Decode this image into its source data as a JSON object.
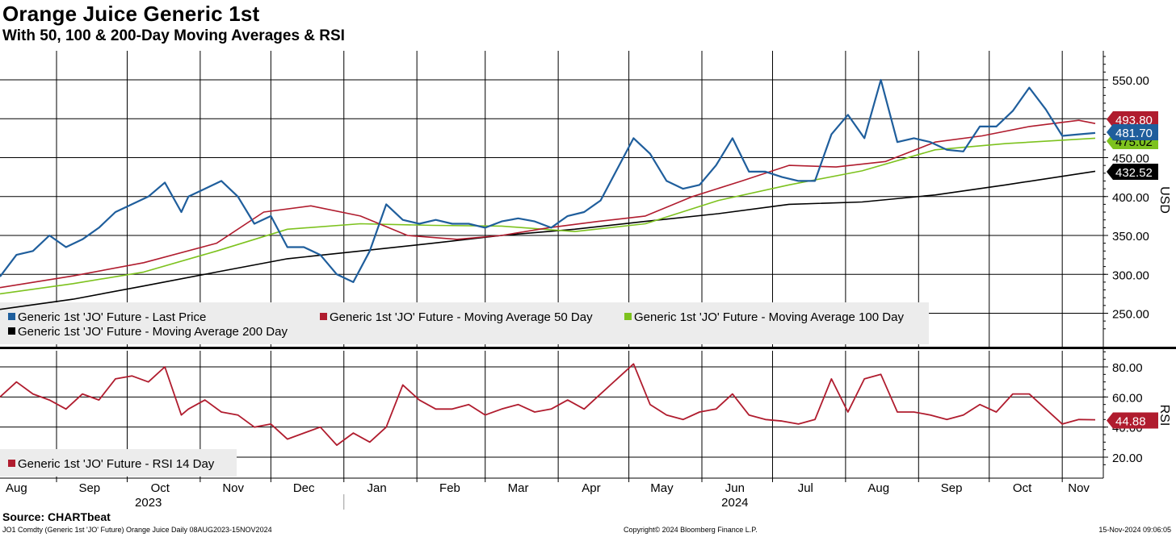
{
  "title": "Orange Juice Generic 1st",
  "subtitle": "With 50, 100 & 200-Day Moving Averages & RSI",
  "source": "Source: CHARTbeat",
  "footer": {
    "left": "JO1 Comdty (Generic 1st 'JO' Future) Orange Juice  Daily 08AUG2023-15NOV2024",
    "center": "Copyright© 2024 Bloomberg Finance L.P.",
    "right": "15-Nov-2024 09:06:05"
  },
  "colors": {
    "last_price": "#1f5e9c",
    "ma50": "#b01c2e",
    "ma100": "#7dc21e",
    "ma200": "#000000",
    "rsi": "#b01c2e",
    "legend_bg": "#ececec"
  },
  "chart_data": [
    {
      "type": "line",
      "panel": "price",
      "ylabel": "USD",
      "ylim": [
        210,
        585
      ],
      "y_ticks": [
        550,
        500,
        450,
        400,
        350,
        300,
        250
      ],
      "y_tick_labels": [
        "550.00",
        "500.00",
        "450.00",
        "400.00",
        "350.00",
        "300.00",
        "250.00"
      ],
      "x_range": [
        "2023-08-08",
        "2024-11-15"
      ],
      "legend": [
        "Generic 1st 'JO' Future - Last Price",
        "Generic 1st 'JO' Future - Moving Average 50 Day",
        "Generic 1st 'JO' Future - Moving Average 100 Day",
        "Generic 1st 'JO' Future - Moving Average 200 Day"
      ],
      "last_values": [
        {
          "series": "ma50",
          "label": "493.80",
          "value": 493.8
        },
        {
          "series": "last",
          "label": "481.70",
          "value": 481.7
        },
        {
          "series": "ma100",
          "label": "475.02",
          "value": 475.02
        },
        {
          "series": "ma200",
          "label": "432.52",
          "value": 432.52
        }
      ],
      "series": [
        {
          "key": "last",
          "x": [
            "2023-08-08",
            "2023-08-15",
            "2023-08-22",
            "2023-08-29",
            "2023-09-05",
            "2023-09-12",
            "2023-09-19",
            "2023-09-26",
            "2023-10-03",
            "2023-10-10",
            "2023-10-17",
            "2023-10-24",
            "2023-10-27",
            "2023-11-03",
            "2023-11-10",
            "2023-11-17",
            "2023-11-24",
            "2023-12-01",
            "2023-12-08",
            "2023-12-15",
            "2023-12-22",
            "2023-12-29",
            "2024-01-05",
            "2024-01-12",
            "2024-01-19",
            "2024-01-26",
            "2024-02-02",
            "2024-02-09",
            "2024-02-16",
            "2024-02-23",
            "2024-03-01",
            "2024-03-08",
            "2024-03-15",
            "2024-03-22",
            "2024-03-29",
            "2024-04-05",
            "2024-04-12",
            "2024-04-19",
            "2024-04-26",
            "2024-05-03",
            "2024-05-10",
            "2024-05-17",
            "2024-05-24",
            "2024-05-31",
            "2024-06-07",
            "2024-06-14",
            "2024-06-21",
            "2024-06-28",
            "2024-07-05",
            "2024-07-12",
            "2024-07-19",
            "2024-07-26",
            "2024-08-02",
            "2024-08-09",
            "2024-08-16",
            "2024-08-23",
            "2024-08-30",
            "2024-09-06",
            "2024-09-13",
            "2024-09-20",
            "2024-09-27",
            "2024-10-04",
            "2024-10-11",
            "2024-10-18",
            "2024-10-25",
            "2024-11-01",
            "2024-11-08",
            "2024-11-15"
          ],
          "values": [
            297,
            325,
            330,
            350,
            335,
            345,
            360,
            380,
            390,
            400,
            418,
            380,
            400,
            410,
            420,
            400,
            365,
            375,
            335,
            335,
            325,
            300,
            290,
            330,
            390,
            370,
            365,
            370,
            365,
            365,
            360,
            368,
            372,
            368,
            360,
            375,
            380,
            395,
            435,
            475,
            455,
            420,
            410,
            415,
            440,
            475,
            432,
            432,
            425,
            420,
            420,
            480,
            505,
            475,
            550,
            470,
            475,
            470,
            460,
            458,
            490,
            490,
            510,
            540,
            512,
            478,
            480,
            481.7
          ]
        },
        {
          "key": "ma50",
          "x": [
            "2023-08-08",
            "2023-09-08",
            "2023-10-08",
            "2023-11-08",
            "2023-11-28",
            "2023-12-18",
            "2024-01-08",
            "2024-01-28",
            "2024-02-18",
            "2024-03-08",
            "2024-03-28",
            "2024-04-18",
            "2024-05-08",
            "2024-05-28",
            "2024-06-18",
            "2024-07-08",
            "2024-07-28",
            "2024-08-18",
            "2024-09-08",
            "2024-09-28",
            "2024-10-18",
            "2024-11-08",
            "2024-11-15"
          ],
          "values": [
            283,
            298,
            315,
            340,
            380,
            388,
            375,
            350,
            345,
            350,
            360,
            368,
            375,
            400,
            420,
            440,
            438,
            445,
            470,
            478,
            490,
            498,
            493.8
          ]
        },
        {
          "key": "ma100",
          "x": [
            "2023-08-08",
            "2023-09-08",
            "2023-10-08",
            "2023-11-08",
            "2023-12-08",
            "2024-01-08",
            "2024-02-08",
            "2024-03-08",
            "2024-04-08",
            "2024-05-08",
            "2024-06-08",
            "2024-07-08",
            "2024-08-08",
            "2024-09-08",
            "2024-10-08",
            "2024-11-15"
          ],
          "values": [
            275,
            288,
            303,
            330,
            358,
            365,
            363,
            362,
            355,
            365,
            395,
            415,
            433,
            460,
            468,
            475.02
          ]
        },
        {
          "key": "ma200",
          "x": [
            "2023-08-08",
            "2023-09-08",
            "2023-10-08",
            "2023-11-08",
            "2023-12-08",
            "2024-01-08",
            "2024-02-08",
            "2024-03-08",
            "2024-04-08",
            "2024-05-08",
            "2024-06-08",
            "2024-07-08",
            "2024-08-08",
            "2024-09-08",
            "2024-10-08",
            "2024-11-15"
          ],
          "values": [
            255,
            268,
            285,
            303,
            320,
            330,
            340,
            350,
            358,
            368,
            378,
            390,
            393,
            402,
            415,
            432.52
          ]
        }
      ]
    },
    {
      "type": "line",
      "panel": "rsi",
      "ylabel": "RSI",
      "ylim": [
        12,
        90
      ],
      "y_ticks": [
        80,
        60,
        40,
        20
      ],
      "y_tick_labels": [
        "80.00",
        "60.00",
        "40.00",
        "20.00"
      ],
      "legend": [
        "Generic 1st 'JO' Future - RSI 14 Day"
      ],
      "last_values": [
        {
          "series": "rsi",
          "label": "44.88",
          "value": 44.88
        }
      ],
      "series": [
        {
          "key": "rsi",
          "x": [
            "2023-08-08",
            "2023-08-15",
            "2023-08-22",
            "2023-08-29",
            "2023-09-05",
            "2023-09-12",
            "2023-09-19",
            "2023-09-26",
            "2023-10-03",
            "2023-10-10",
            "2023-10-17",
            "2023-10-24",
            "2023-10-27",
            "2023-11-03",
            "2023-11-10",
            "2023-11-17",
            "2023-11-24",
            "2023-12-01",
            "2023-12-08",
            "2023-12-15",
            "2023-12-22",
            "2023-12-29",
            "2024-01-05",
            "2024-01-12",
            "2024-01-19",
            "2024-01-26",
            "2024-02-02",
            "2024-02-09",
            "2024-02-16",
            "2024-02-23",
            "2024-03-01",
            "2024-03-08",
            "2024-03-15",
            "2024-03-22",
            "2024-03-29",
            "2024-04-05",
            "2024-04-12",
            "2024-04-19",
            "2024-04-26",
            "2024-05-03",
            "2024-05-10",
            "2024-05-17",
            "2024-05-24",
            "2024-05-31",
            "2024-06-07",
            "2024-06-14",
            "2024-06-21",
            "2024-06-28",
            "2024-07-05",
            "2024-07-12",
            "2024-07-19",
            "2024-07-26",
            "2024-08-02",
            "2024-08-09",
            "2024-08-16",
            "2024-08-23",
            "2024-08-30",
            "2024-09-06",
            "2024-09-13",
            "2024-09-20",
            "2024-09-27",
            "2024-10-04",
            "2024-10-11",
            "2024-10-18",
            "2024-10-25",
            "2024-11-01",
            "2024-11-08",
            "2024-11-15"
          ],
          "values": [
            60,
            70,
            62,
            58,
            52,
            62,
            58,
            72,
            74,
            70,
            80,
            48,
            52,
            58,
            50,
            48,
            40,
            42,
            32,
            36,
            40,
            28,
            36,
            30,
            40,
            68,
            58,
            52,
            52,
            55,
            48,
            52,
            55,
            50,
            52,
            58,
            52,
            62,
            72,
            82,
            55,
            48,
            45,
            50,
            52,
            62,
            48,
            45,
            44,
            42,
            45,
            72,
            50,
            72,
            75,
            50,
            50,
            48,
            45,
            48,
            55,
            50,
            62,
            62,
            52,
            42,
            45,
            44.88
          ]
        }
      ]
    }
  ],
  "x_axis": {
    "months": [
      {
        "label": "Aug",
        "date": "2023-08-15"
      },
      {
        "label": "Sep",
        "date": "2023-09-15"
      },
      {
        "label": "Oct",
        "date": "2023-10-15"
      },
      {
        "label": "Nov",
        "date": "2023-11-15"
      },
      {
        "label": "Dec",
        "date": "2023-12-15"
      },
      {
        "label": "Jan",
        "date": "2024-01-15"
      },
      {
        "label": "Feb",
        "date": "2024-02-15"
      },
      {
        "label": "Mar",
        "date": "2024-03-15"
      },
      {
        "label": "Apr",
        "date": "2024-04-15"
      },
      {
        "label": "May",
        "date": "2024-05-15"
      },
      {
        "label": "Jun",
        "date": "2024-06-15"
      },
      {
        "label": "Jul",
        "date": "2024-07-15"
      },
      {
        "label": "Aug",
        "date": "2024-08-15"
      },
      {
        "label": "Sep",
        "date": "2024-09-15"
      },
      {
        "label": "Oct",
        "date": "2024-10-15"
      },
      {
        "label": "Nov",
        "date": "2024-11-08"
      }
    ],
    "gridlines": [
      "2023-09-01",
      "2023-10-01",
      "2023-11-01",
      "2023-12-01",
      "2024-01-01",
      "2024-02-01",
      "2024-03-01",
      "2024-04-01",
      "2024-05-01",
      "2024-06-01",
      "2024-07-01",
      "2024-08-01",
      "2024-09-01",
      "2024-10-01",
      "2024-11-01"
    ],
    "years": [
      {
        "label": "2023",
        "date": "2023-10-10"
      },
      {
        "label": "2024",
        "date": "2024-06-15"
      }
    ],
    "year_divider": "2024-01-01"
  }
}
